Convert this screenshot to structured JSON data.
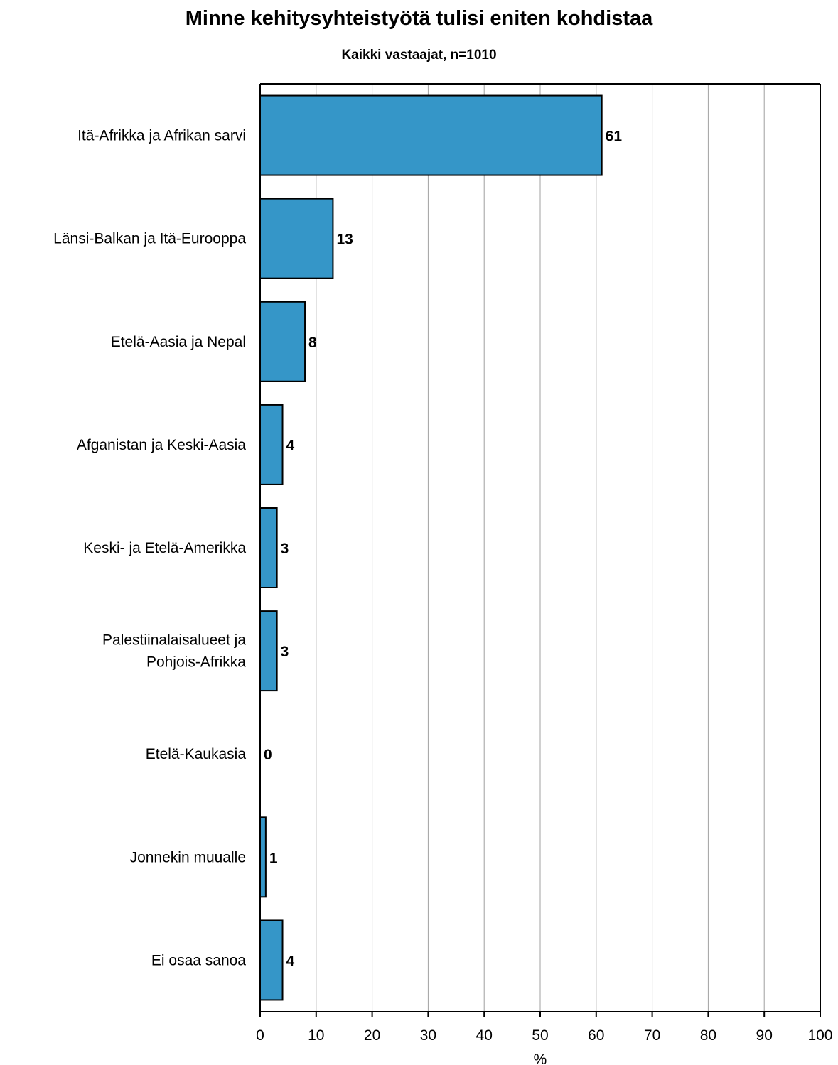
{
  "chart_data": {
    "type": "bar",
    "orientation": "horizontal",
    "title": "Minne kehitysyhteistyötä tulisi eniten kohdistaa",
    "subtitle": "Kaikki vastaajat, n=1010",
    "xlabel": "%",
    "xlim": [
      0,
      100
    ],
    "x_ticks": [
      0,
      10,
      20,
      30,
      40,
      50,
      60,
      70,
      80,
      90,
      100
    ],
    "grid": "vertical",
    "categories": [
      "Itä-Afrikka ja Afrikan sarvi",
      "Länsi-Balkan ja Itä-Eurooppa",
      "Etelä-Aasia ja Nepal",
      "Afganistan ja Keski-Aasia",
      "Keski- ja Etelä-Amerikka",
      "Palestiinalaisalueet ja\nPohjois-Afrikka",
      "Etelä-Kaukasia",
      "Jonnekin muualle",
      "Ei osaa sanoa"
    ],
    "values": [
      61,
      13,
      8,
      4,
      3,
      3,
      0,
      1,
      4
    ],
    "colors": {
      "bar": "#3596c8",
      "bar_edge": "#000000",
      "grid": "#a0a0a0"
    }
  }
}
